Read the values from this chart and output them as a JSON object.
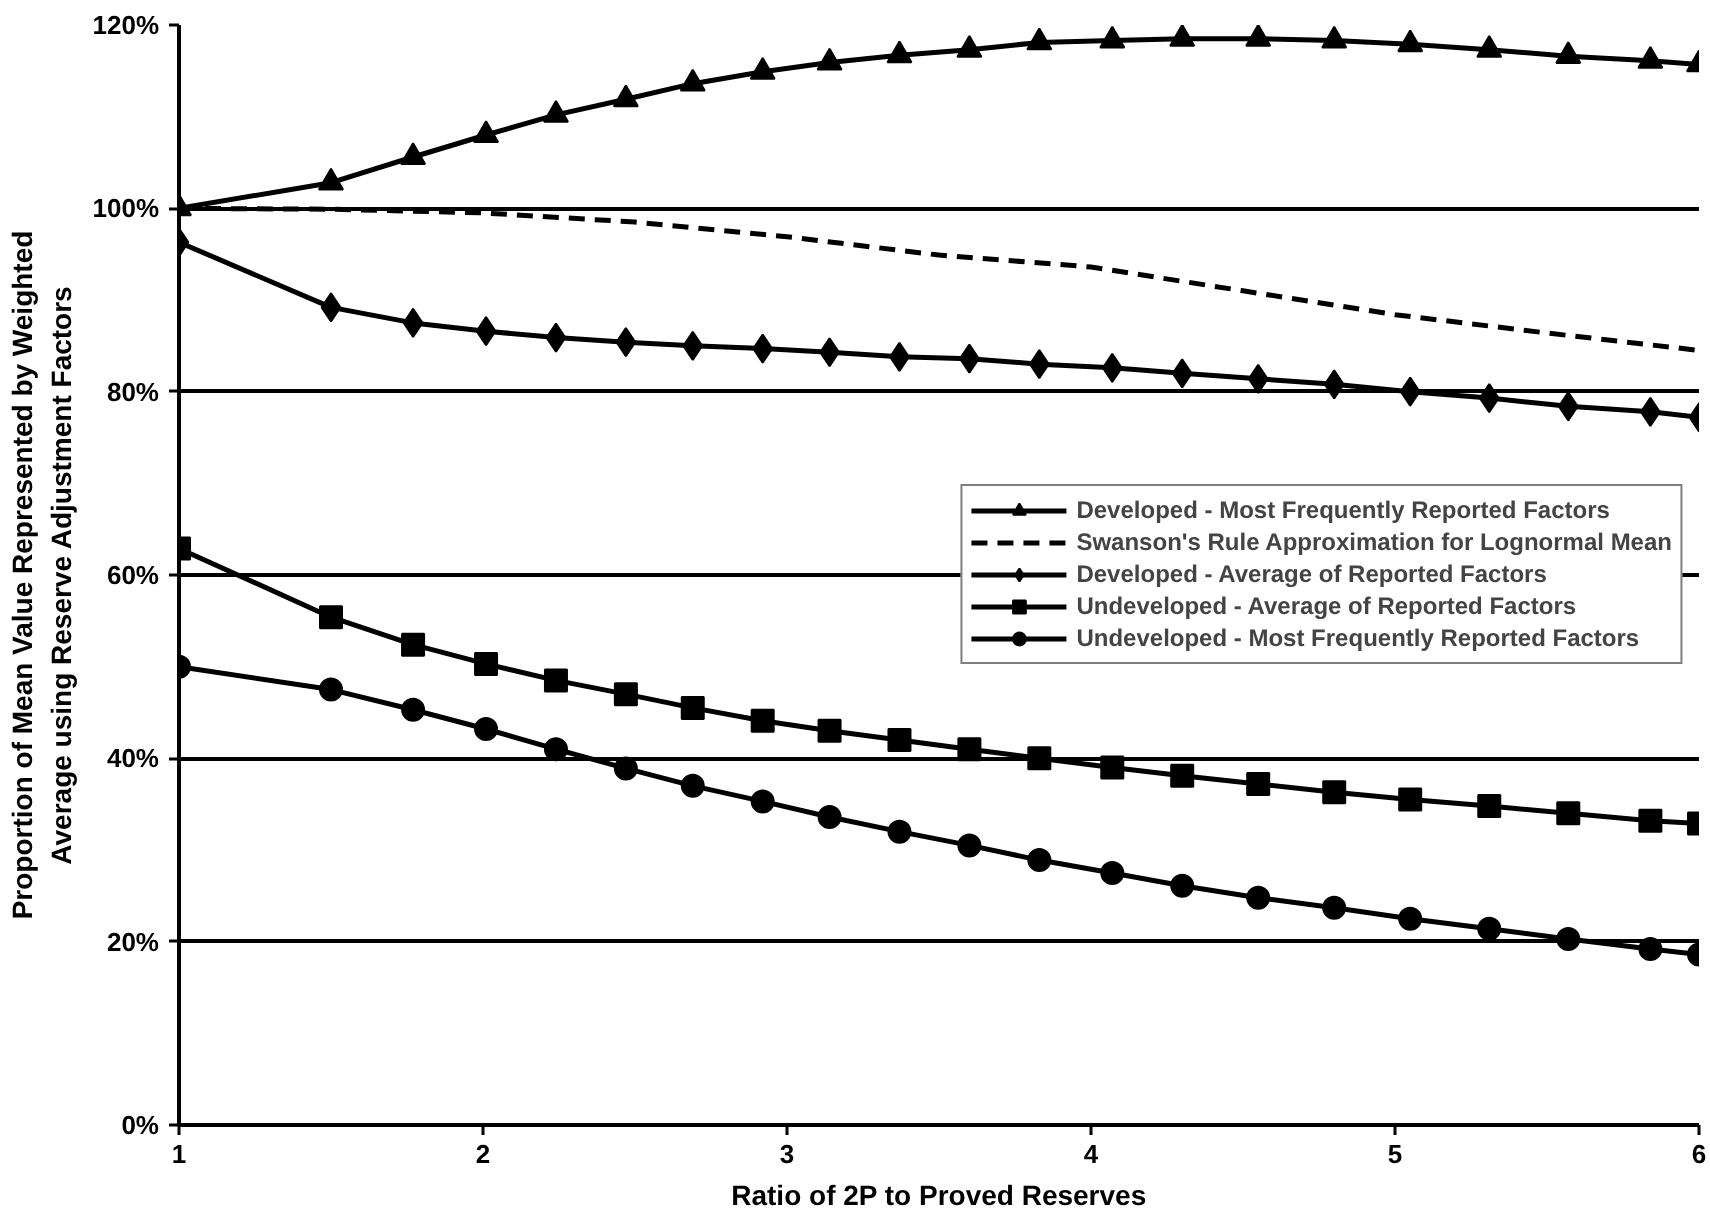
{
  "chart_data": {
    "type": "line",
    "xlabel": "Ratio of 2P to Proved Reserves",
    "ylabel": "Proportion of Mean Value Represented by Weighted\nAverage using Reserve Adjustment Factors",
    "x": [
      1,
      1.5,
      1.77,
      2.01,
      2.24,
      2.47,
      2.69,
      2.92,
      3.14,
      3.37,
      3.6,
      3.83,
      4.07,
      4.3,
      4.55,
      4.8,
      5.05,
      5.31,
      5.57,
      5.84,
      6
    ],
    "xlim": [
      1,
      6
    ],
    "xticks": [
      1,
      2,
      3,
      4,
      5,
      6
    ],
    "ylim": [
      0,
      120
    ],
    "yticks": [
      {
        "value": 0,
        "label": "0%"
      },
      {
        "value": 20,
        "label": "20%"
      },
      {
        "value": 40,
        "label": "40%"
      },
      {
        "value": 60,
        "label": "60%"
      },
      {
        "value": 80,
        "label": "80%"
      },
      {
        "value": 100,
        "label": "100%"
      },
      {
        "value": 120,
        "label": "120%"
      }
    ],
    "grid": "y",
    "legend": "center right",
    "series": [
      {
        "name": "Developed - Most Frequently Reported Factors",
        "color": "#000000",
        "marker": "triangle",
        "line_style": "solid",
        "values": [
          100,
          102.8,
          105.6,
          108,
          110.2,
          111.9,
          113.6,
          114.9,
          115.9,
          116.7,
          117.3,
          118.1,
          118.3,
          118.5,
          118.5,
          118.3,
          117.9,
          117.3,
          116.6,
          116.1,
          115.7
        ]
      },
      {
        "name": "Swanson's Rule Approximation for Lognormal Mean",
        "color": "#000000",
        "marker": "none",
        "line_style": "dashed",
        "x": [
          1,
          1.5,
          2,
          2.5,
          3,
          3.5,
          4,
          4.5,
          5,
          5.5,
          6
        ],
        "values": [
          100,
          99.9,
          99.5,
          98.5,
          96.9,
          94.9,
          93.6,
          91.0,
          88.4,
          86.4,
          84.5
        ]
      },
      {
        "name": "Developed - Average of Reported Factors",
        "color": "#000000",
        "marker": "diamond",
        "line_style": "solid",
        "values": [
          96.3,
          89.2,
          87.5,
          86.6,
          85.9,
          85.4,
          85.0,
          84.7,
          84.3,
          83.8,
          83.6,
          83.0,
          82.6,
          82.0,
          81.4,
          80.8,
          80.0,
          79.3,
          78.4,
          77.8,
          77.2
        ]
      },
      {
        "name": "Undeveloped - Average of Reported Factors",
        "color": "#000000",
        "marker": "square",
        "line_style": "solid",
        "values": [
          62.9,
          55.4,
          52.4,
          50.3,
          48.5,
          47.0,
          45.5,
          44.1,
          43.0,
          42.0,
          41.0,
          40.0,
          39.0,
          38.1,
          37.2,
          36.3,
          35.5,
          34.8,
          34.0,
          33.2,
          32.9
        ]
      },
      {
        "name": "Undeveloped - Most Frequently Reported Factors",
        "color": "#000000",
        "marker": "circle",
        "line_style": "solid",
        "values": [
          50.0,
          47.5,
          45.3,
          43.2,
          41.0,
          38.9,
          37.0,
          35.3,
          33.6,
          32.0,
          30.5,
          28.9,
          27.5,
          26.1,
          24.8,
          23.7,
          22.5,
          21.4,
          20.3,
          19.2,
          18.6
        ]
      }
    ]
  }
}
